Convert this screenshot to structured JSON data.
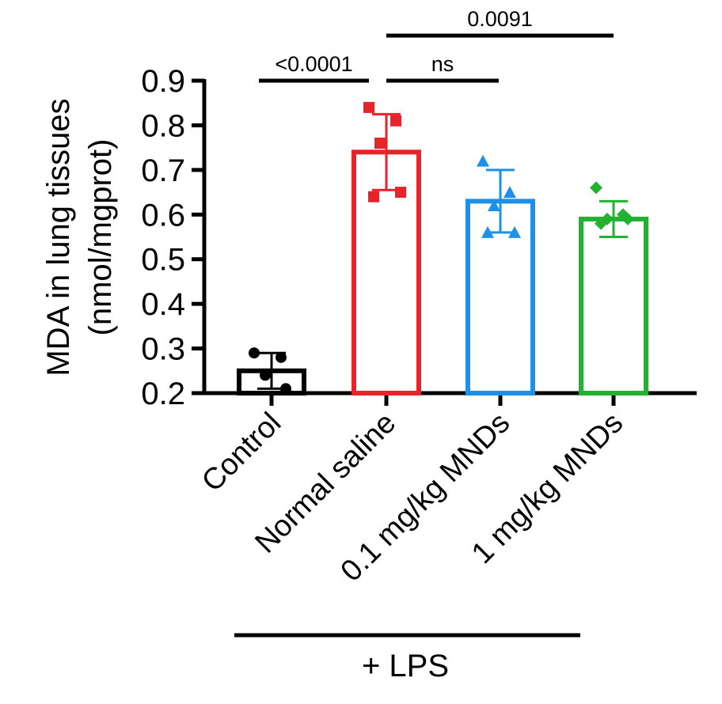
{
  "chart_data": {
    "type": "bar",
    "ylabel_lines": [
      "MDA in lung tissues",
      "(nmol/mgprot)"
    ],
    "ylim": [
      0.2,
      0.9
    ],
    "yticks": [
      "0.2",
      "0.3",
      "0.4",
      "0.5",
      "0.6",
      "0.7",
      "0.8",
      "0.9"
    ],
    "categories": [
      "Control",
      "Normal saline",
      "0.1 mg/kg MNDs",
      "1 mg/kg MNDs"
    ],
    "values": [
      0.25,
      0.74,
      0.63,
      0.59
    ],
    "errors": [
      0.04,
      0.085,
      0.07,
      0.04
    ],
    "colors": [
      "#000000",
      "#e8232a",
      "#1e90e8",
      "#22b131"
    ],
    "markers": [
      "circle",
      "square",
      "triangle",
      "diamond"
    ],
    "points": [
      [
        0.29,
        0.28,
        0.24,
        0.21
      ],
      [
        0.84,
        0.81,
        0.76,
        0.65,
        0.64
      ],
      [
        0.72,
        0.65,
        0.62,
        0.56,
        0.56
      ],
      [
        0.66,
        0.6,
        0.59,
        0.59,
        0.58
      ]
    ],
    "comparisons": [
      {
        "from": 0,
        "to": 1,
        "label": "<0.0001"
      },
      {
        "from": 1,
        "to": 2,
        "label": "ns"
      },
      {
        "from": 1,
        "to": 3,
        "label": "0.0091"
      }
    ],
    "group_bracket": {
      "from": 1,
      "to": 3,
      "label": "+ LPS"
    }
  }
}
